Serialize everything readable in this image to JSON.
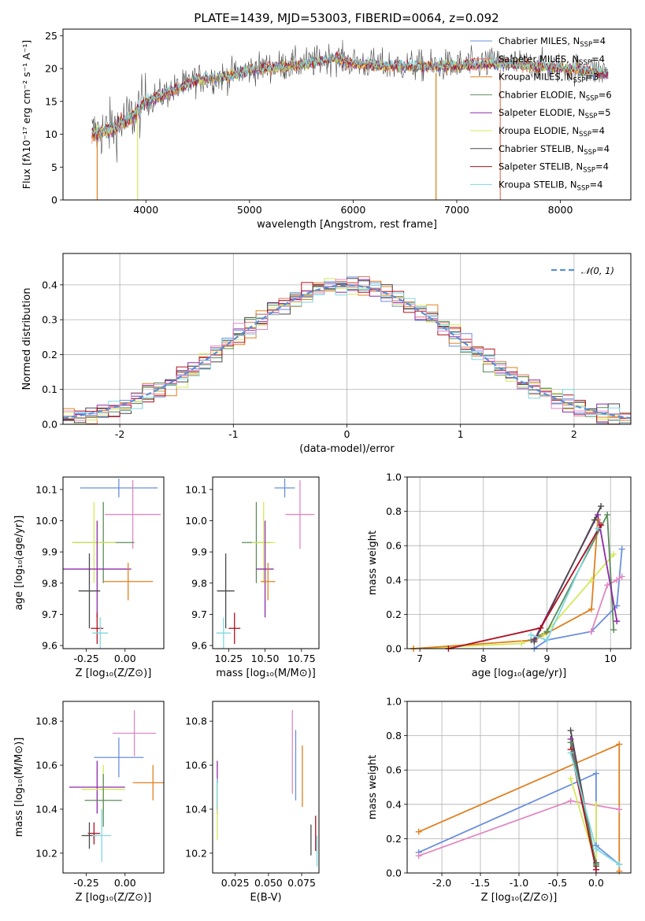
{
  "figure": {
    "title": "PLATE=1439, MJD=53003, FIBERID=0064, z=0.092"
  },
  "colors": {
    "Chabrier MILES": "#6a8fde",
    "Salpeter MILES": "#e07a5f",
    "Kroupa MILES": "#e08020",
    "Chabrier ELODIE": "#5b8c5a",
    "Salpeter ELODIE": "#8e2aa8",
    "Kroupa ELODIE": "#d4e85a",
    "Chabrier STELIB": "#4a4a4a",
    "Salpeter STELIB": "#b01020",
    "Kroupa STELIB": "#7fd8e0",
    "pink": "#e088c0",
    "normal_curve": "#5b8fd6"
  },
  "chart_data": [
    {
      "id": "spectrum",
      "type": "line",
      "xlabel": "wavelength [Angstrom, rest frame]",
      "ylabel": "Flux [fλ10⁻¹⁷ erg cm⁻² s⁻¹ A⁻¹]",
      "xlim": [
        3200,
        8680
      ],
      "ylim": [
        0,
        26
      ],
      "xticks": [
        4000,
        5000,
        6000,
        7000,
        8000
      ],
      "yticks": [
        0,
        5,
        10,
        15,
        20,
        25
      ],
      "legend_position": "top-right",
      "legend": [
        {
          "label": "Chabrier MILES, N_SSP=4",
          "base": "Chabrier MILES, N",
          "sub": "SSP",
          "tail": "=4",
          "color": "#6a8fde"
        },
        {
          "label": "Salpeter MILES, N_SSP=4",
          "base": "Salpeter MILES, N",
          "sub": "SSP",
          "tail": "=4",
          "color": "#e07a5f"
        },
        {
          "label": "Kroupa MILES, N_SSP=3",
          "base": "Kroupa MILES, N",
          "sub": "SSP",
          "tail": "=3",
          "color": "#e08020"
        },
        {
          "label": "Chabrier ELODIE, N_SSP=6",
          "base": "Chabrier ELODIE, N",
          "sub": "SSP",
          "tail": "=6",
          "color": "#5b8c5a"
        },
        {
          "label": "Salpeter ELODIE, N_SSP=5",
          "base": "Salpeter ELODIE, N",
          "sub": "SSP",
          "tail": "=5",
          "color": "#8e2aa8"
        },
        {
          "label": "Kroupa ELODIE, N_SSP=4",
          "base": "Kroupa ELODIE, N",
          "sub": "SSP",
          "tail": "=4",
          "color": "#d4e85a"
        },
        {
          "label": "Chabrier STELIB, N_SSP=4",
          "base": "Chabrier STELIB, N",
          "sub": "SSP",
          "tail": "=4",
          "color": "#4a4a4a"
        },
        {
          "label": "Salpeter STELIB, N_SSP=4",
          "base": "Salpeter STELIB, N",
          "sub": "SSP",
          "tail": "=4",
          "color": "#b01020"
        },
        {
          "label": "Kroupa STELIB, N_SSP=4",
          "base": "Kroupa STELIB, N",
          "sub": "SSP",
          "tail": "=4",
          "color": "#7fd8e0"
        }
      ],
      "data_trend": {
        "x": [
          3500,
          3700,
          3900,
          4000,
          4200,
          4500,
          4800,
          5000,
          5300,
          5600,
          5800,
          6000,
          6300,
          6600,
          7000,
          7400,
          7800,
          8200,
          8450
        ],
        "y": [
          10.5,
          11.5,
          13.5,
          15.5,
          16.5,
          18.5,
          19.0,
          20.0,
          20.5,
          21.0,
          22.0,
          21.0,
          20.5,
          20.5,
          20.5,
          21.0,
          20.5,
          20.0,
          19.5
        ]
      },
      "model_trend": {
        "x": [
          3500,
          3700,
          3900,
          4000,
          4200,
          4500,
          4800,
          5000,
          5300,
          5600,
          5800,
          6000,
          6300,
          6600,
          7000,
          7400,
          7800,
          8200,
          8450
        ],
        "y": [
          10.0,
          11.0,
          13.0,
          15.0,
          16.2,
          18.3,
          18.8,
          19.8,
          20.3,
          20.8,
          21.6,
          20.8,
          20.4,
          20.3,
          20.4,
          20.8,
          20.3,
          19.8,
          19.3
        ]
      },
      "dropouts": [
        {
          "series": "Kroupa MILES",
          "x": 3530
        },
        {
          "series": "Kroupa ELODIE",
          "x": 3920
        },
        {
          "series": "Kroupa ELODIE",
          "x": 6800
        },
        {
          "series": "Kroupa MILES",
          "x": 6800
        },
        {
          "series": "Salpeter MILES",
          "x": 7420
        }
      ]
    },
    {
      "id": "residuals",
      "type": "histogram",
      "xlabel": "(data-model)/error",
      "ylabel": "Normed distribution",
      "xlim": [
        -2.5,
        2.5
      ],
      "ylim": [
        0,
        0.49
      ],
      "xticks": [
        -2,
        -1,
        0,
        1,
        2
      ],
      "yticks": [
        0.0,
        0.1,
        0.2,
        0.3,
        0.4
      ],
      "bin_width": 0.1,
      "normal_label": "𝒩(0, 1)",
      "legend_position": "top-right",
      "grid": true
    },
    {
      "id": "age_vs_Z",
      "type": "errorbar",
      "xlabel": "Z [log₁₀(Z/Z⊙)]",
      "ylabel": "age  [log₁₀(age/yr)]",
      "xlim": [
        -0.4,
        0.25
      ],
      "ylim": [
        9.59,
        10.14
      ],
      "xticks": [
        -0.25,
        0.0
      ],
      "yticks": [
        9.6,
        9.7,
        9.8,
        9.9,
        10.0,
        10.1
      ],
      "points": [
        {
          "color": "#6a8fde",
          "x": -0.04,
          "xerr": 0.25,
          "y": 10.105,
          "yerr": 0.03
        },
        {
          "color": "#e088c0",
          "x": 0.05,
          "xerr": 0.18,
          "y": 10.02,
          "yerr": 0.11
        },
        {
          "color": "#5b8c5a",
          "x": -0.14,
          "xerr": 0.2,
          "y": 9.93,
          "yerr": 0.13
        },
        {
          "color": "#d4e85a",
          "x": -0.2,
          "xerr": 0.14,
          "y": 9.93,
          "yerr": 0.13
        },
        {
          "color": "#8e2aa8",
          "x": -0.18,
          "xerr": 0.22,
          "y": 9.845,
          "yerr": 0.155
        },
        {
          "color": "#e08020",
          "x": 0.02,
          "xerr": 0.16,
          "y": 9.805,
          "yerr": 0.06
        },
        {
          "color": "#4a4a4a",
          "x": -0.23,
          "xerr": 0.07,
          "y": 9.775,
          "yerr": 0.12
        },
        {
          "color": "#b01020",
          "x": -0.18,
          "xerr": 0.04,
          "y": 9.655,
          "yerr": 0.05
        },
        {
          "color": "#7fd8e0",
          "x": -0.16,
          "xerr": 0.05,
          "y": 9.64,
          "yerr": 0.05
        }
      ]
    },
    {
      "id": "age_vs_mass",
      "type": "errorbar",
      "xlabel": "mass [log₁₀(M/M⊙)]",
      "ylabel": "",
      "xlim": [
        10.14,
        10.87
      ],
      "ylim": [
        9.59,
        10.14
      ],
      "xticks": [
        10.25,
        10.5,
        10.75
      ],
      "yticks": [
        9.6,
        9.7,
        9.8,
        9.9,
        10.0,
        10.1
      ],
      "points": [
        {
          "color": "#6a8fde",
          "x": 10.635,
          "xerr": 0.07,
          "y": 10.105,
          "yerr": 0.03
        },
        {
          "color": "#e088c0",
          "x": 10.74,
          "xerr": 0.1,
          "y": 10.02,
          "yerr": 0.11
        },
        {
          "color": "#5b8c5a",
          "x": 10.44,
          "xerr": 0.1,
          "y": 9.93,
          "yerr": 0.13
        },
        {
          "color": "#d4e85a",
          "x": 10.49,
          "xerr": 0.08,
          "y": 9.93,
          "yerr": 0.13
        },
        {
          "color": "#8e2aa8",
          "x": 10.5,
          "xerr": 0.06,
          "y": 9.845,
          "yerr": 0.155
        },
        {
          "color": "#e08020",
          "x": 10.52,
          "xerr": 0.05,
          "y": 9.805,
          "yerr": 0.06
        },
        {
          "color": "#4a4a4a",
          "x": 10.23,
          "xerr": 0.06,
          "y": 9.775,
          "yerr": 0.12
        },
        {
          "color": "#b01020",
          "x": 10.29,
          "xerr": 0.04,
          "y": 9.655,
          "yerr": 0.05
        },
        {
          "color": "#7fd8e0",
          "x": 10.215,
          "xerr": 0.05,
          "y": 9.64,
          "yerr": 0.05
        }
      ]
    },
    {
      "id": "massweight_vs_age",
      "type": "line",
      "xlabel": "age  [log₁₀(age/yr)]",
      "ylabel": "mass weight",
      "xlim": [
        6.8,
        10.32
      ],
      "ylim": [
        0,
        1.0
      ],
      "xticks": [
        7,
        8,
        9,
        10
      ],
      "yticks": [
        0.0,
        0.2,
        0.4,
        0.6,
        0.8,
        1.0
      ],
      "grid": true,
      "series": [
        {
          "color": "#d4e85a",
          "x": [
            6.9,
            8.6,
            8.95,
            9.7,
            10.05
          ],
          "y": [
            0.0,
            0.03,
            0.08,
            0.4,
            0.55
          ]
        },
        {
          "color": "#e08020",
          "x": [
            6.9,
            8.8,
            9.7,
            9.8
          ],
          "y": [
            0.0,
            0.05,
            0.23,
            0.75
          ]
        },
        {
          "color": "#6a8fde",
          "x": [
            8.8,
            9.0,
            9.7,
            10.1,
            10.18
          ],
          "y": [
            0.0,
            0.05,
            0.1,
            0.25,
            0.58
          ]
        },
        {
          "color": "#e088c0",
          "x": [
            9.7,
            9.95,
            10.1,
            10.18
          ],
          "y": [
            0.1,
            0.37,
            0.4,
            0.42
          ]
        },
        {
          "color": "#5b8c5a",
          "x": [
            8.75,
            9.0,
            9.95,
            10.05
          ],
          "y": [
            0.05,
            0.1,
            0.78,
            0.11
          ]
        },
        {
          "color": "#8e2aa8",
          "x": [
            8.8,
            9.8,
            10.1
          ],
          "y": [
            0.05,
            0.78,
            0.16
          ]
        },
        {
          "color": "#4a4a4a",
          "x": [
            8.8,
            9.75,
            9.85
          ],
          "y": [
            0.04,
            0.75,
            0.83
          ]
        },
        {
          "color": "#7fd8e0",
          "x": [
            8.75,
            9.0,
            9.8
          ],
          "y": [
            0.08,
            0.05,
            0.7
          ]
        },
        {
          "color": "#b01020",
          "x": [
            7.45,
            8.9,
            9.85
          ],
          "y": [
            0.0,
            0.12,
            0.72
          ]
        }
      ]
    },
    {
      "id": "mass_vs_Z",
      "type": "errorbar",
      "xlabel": "Z [log₁₀(Z/Z⊙)]",
      "ylabel": "mass [log₁₀(M/M⊙)]",
      "xlim": [
        -0.4,
        0.25
      ],
      "ylim": [
        10.11,
        10.89
      ],
      "xticks": [
        -0.25,
        0.0
      ],
      "yticks": [
        10.2,
        10.4,
        10.6,
        10.8
      ],
      "points": [
        {
          "color": "#e088c0",
          "x": 0.06,
          "xerr": 0.14,
          "y": 10.745,
          "yerr": 0.105
        },
        {
          "color": "#6a8fde",
          "x": -0.04,
          "xerr": 0.16,
          "y": 10.635,
          "yerr": 0.09
        },
        {
          "color": "#e08020",
          "x": 0.18,
          "xerr": 0.13,
          "y": 10.52,
          "yerr": 0.08
        },
        {
          "color": "#8e2aa8",
          "x": -0.18,
          "xerr": 0.18,
          "y": 10.5,
          "yerr": 0.12
        },
        {
          "color": "#d4e85a",
          "x": -0.14,
          "xerr": 0.14,
          "y": 10.49,
          "yerr": 0.11
        },
        {
          "color": "#5b8c5a",
          "x": -0.14,
          "xerr": 0.12,
          "y": 10.44,
          "yerr": 0.12
        },
        {
          "color": "#b01020",
          "x": -0.2,
          "xerr": 0.04,
          "y": 10.29,
          "yerr": 0.05
        },
        {
          "color": "#4a4a4a",
          "x": -0.23,
          "xerr": 0.05,
          "y": 10.28,
          "yerr": 0.06
        },
        {
          "color": "#7fd8e0",
          "x": -0.15,
          "xerr": 0.06,
          "y": 10.28,
          "yerr": 0.12
        }
      ]
    },
    {
      "id": "mass_vs_EBV",
      "type": "errorbar",
      "xlabel": "E(B-V)",
      "ylabel": "",
      "xlim": [
        0.008,
        0.088
      ],
      "ylim": [
        10.11,
        10.89
      ],
      "xticks": [
        0.025,
        0.05,
        0.075
      ],
      "xticklabels": [
        "0.025",
        "0.050",
        "0.075"
      ],
      "yticks": [
        10.2,
        10.4,
        10.6,
        10.8
      ],
      "points": [
        {
          "color": "#8e2aa8",
          "x": 0.0115,
          "xerr": 0,
          "y": 10.5,
          "yerr": 0.12
        },
        {
          "color": "#d4e85a",
          "x": 0.0115,
          "xerr": 0,
          "y": 10.39,
          "yerr": 0.13
        },
        {
          "color": "#7fd8e0",
          "x": 0.0113,
          "xerr": 0,
          "y": 10.47,
          "yerr": 0.07
        },
        {
          "color": "#e088c0",
          "x": 0.068,
          "xerr": 0,
          "y": 10.66,
          "yerr": 0.19
        },
        {
          "color": "#6a8fde",
          "x": 0.0705,
          "xerr": 0,
          "y": 10.6,
          "yerr": 0.16
        },
        {
          "color": "#e08020",
          "x": 0.0755,
          "xerr": 0,
          "y": 10.55,
          "yerr": 0.14
        },
        {
          "color": "#4a4a4a",
          "x": 0.082,
          "xerr": 0,
          "y": 10.26,
          "yerr": 0.07
        },
        {
          "color": "#b01020",
          "x": 0.0855,
          "xerr": 0,
          "y": 10.29,
          "yerr": 0.08
        },
        {
          "color": "#7fd8e0",
          "x": 0.0865,
          "xerr": 0,
          "y": 10.21,
          "yerr": 0.07
        }
      ]
    },
    {
      "id": "massweight_vs_Z",
      "type": "line",
      "xlabel": "Z [log₁₀(Z/Z⊙)]",
      "ylabel": "mass weight",
      "xlim": [
        -2.45,
        0.45
      ],
      "ylim": [
        0,
        1.0
      ],
      "xticks": [
        -2.0,
        -1.5,
        -1.0,
        -0.5,
        0.0
      ],
      "yticks": [
        0.0,
        0.2,
        0.4,
        0.6,
        0.8,
        1.0
      ],
      "grid": true,
      "series": [
        {
          "color": "#e08020",
          "x": [
            -2.3,
            0.3,
            0.3
          ],
          "y": [
            0.24,
            0.75,
            0.01
          ]
        },
        {
          "color": "#6a8fde",
          "x": [
            -2.3,
            0.0,
            0.0,
            0.3
          ],
          "y": [
            0.12,
            0.58,
            0.16,
            0.05
          ]
        },
        {
          "color": "#e088c0",
          "x": [
            -2.3,
            -0.33,
            0.3
          ],
          "y": [
            0.1,
            0.42,
            0.37
          ]
        },
        {
          "color": "#d4e85a",
          "x": [
            -0.33,
            0.0,
            0.0
          ],
          "y": [
            0.55,
            0.05,
            0.4
          ]
        },
        {
          "color": "#4a4a4a",
          "x": [
            -0.33,
            0.0,
            0.0
          ],
          "y": [
            0.83,
            0.04,
            0.06
          ]
        },
        {
          "color": "#8e2aa8",
          "x": [
            -0.33,
            0.0
          ],
          "y": [
            0.78,
            0.02
          ]
        },
        {
          "color": "#5b8c5a",
          "x": [
            -0.33,
            0.0
          ],
          "y": [
            0.76,
            0.05
          ]
        },
        {
          "color": "#b01020",
          "x": [
            -0.33,
            0.0
          ],
          "y": [
            0.72,
            0.02
          ]
        },
        {
          "color": "#7fd8e0",
          "x": [
            -0.33,
            0.0,
            0.3
          ],
          "y": [
            0.7,
            0.14,
            0.05
          ]
        }
      ]
    }
  ]
}
